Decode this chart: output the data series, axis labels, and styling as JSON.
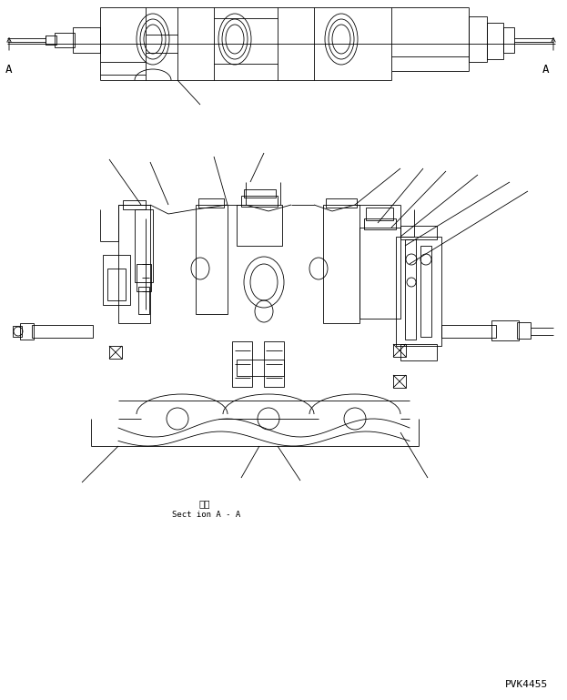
{
  "bg_color": "#ffffff",
  "line_color": "#000000",
  "page_code": "PVK4455",
  "section_label_jp": "断面",
  "section_label_en": "Sect ion A - A",
  "fig_width": 6.23,
  "fig_height": 7.69,
  "dpi": 100
}
